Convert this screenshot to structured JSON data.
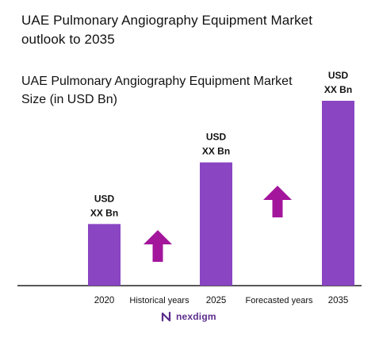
{
  "header": {
    "title": "UAE Pulmonary Angiography Equipment Market outlook to 2035",
    "subtitle": "UAE Pulmonary Angiography Equipment Market Size (in USD Bn)"
  },
  "brand": {
    "name": "nexdigm",
    "color": "#5b2d8c"
  },
  "colors": {
    "bar": "#8a45c2",
    "arrow": "#a3169c",
    "axis": "#222222"
  },
  "chart_data": {
    "type": "bar",
    "categories": [
      "2020",
      "2025",
      "2035"
    ],
    "values": [
      0.2,
      0.4,
      0.6
    ],
    "ylim": [
      0,
      0.6
    ],
    "grid": false,
    "data_labels": [
      [
        "USD",
        "XX Bn"
      ],
      [
        "USD",
        "XX Bn"
      ],
      [
        "USD",
        "XX Bn"
      ]
    ],
    "period_labels": [
      "Historical years",
      "Forecasted years"
    ]
  }
}
